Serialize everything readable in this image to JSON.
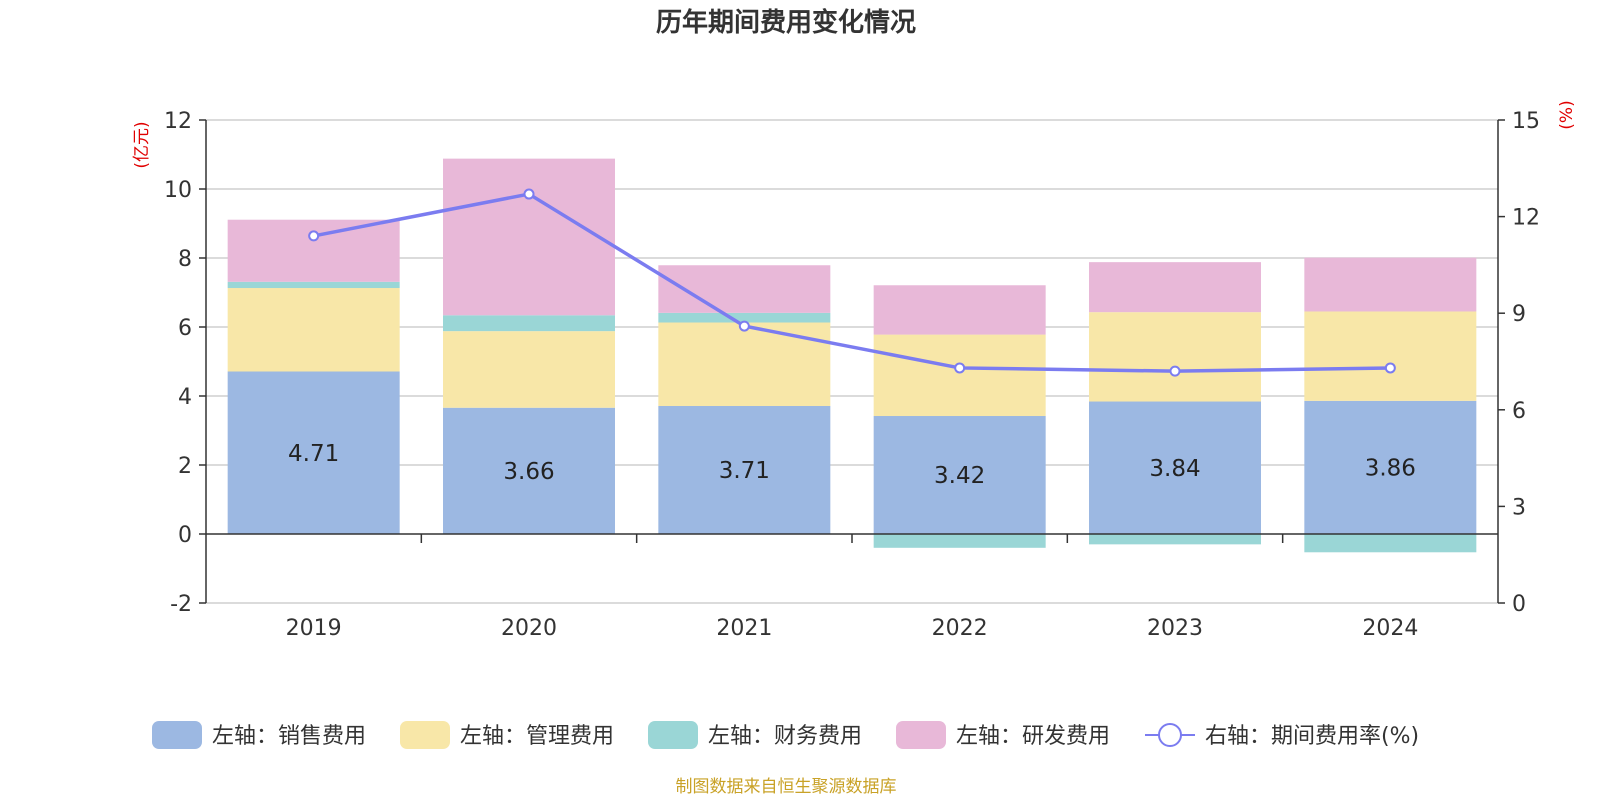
{
  "chart_data": {
    "type": "bar",
    "title": "历年期间费用变化情况",
    "categories": [
      "2019",
      "2020",
      "2021",
      "2022",
      "2023",
      "2024"
    ],
    "series": [
      {
        "name": "左轴：销售费用",
        "axis": "left",
        "color": "#9cb8e2",
        "values": [
          4.71,
          3.66,
          3.71,
          3.42,
          3.84,
          3.86
        ],
        "labels": [
          "4.71",
          "3.66",
          "3.71",
          "3.42",
          "3.84",
          "3.86"
        ]
      },
      {
        "name": "左轴：管理费用",
        "axis": "left",
        "color": "#f8e7a8",
        "values": [
          2.42,
          2.22,
          2.42,
          2.36,
          2.59,
          2.59
        ]
      },
      {
        "name": "左轴：财务费用",
        "axis": "left",
        "color": "#9ad6d6",
        "values": [
          0.18,
          0.46,
          0.28,
          -0.4,
          -0.3,
          -0.53
        ]
      },
      {
        "name": "左轴：研发费用",
        "axis": "left",
        "color": "#e8b8d8",
        "values": [
          1.8,
          4.54,
          1.38,
          1.43,
          1.45,
          1.56
        ]
      },
      {
        "name": "右轴：期间费用率(%)",
        "axis": "right",
        "type": "line",
        "color": "#7b7cf0",
        "values": [
          11.4,
          12.7,
          8.6,
          7.3,
          7.2,
          7.3
        ]
      }
    ],
    "left_axis": {
      "unit": "(亿元)",
      "ylim": [
        -2,
        12
      ],
      "ticks": [
        -2,
        0,
        2,
        4,
        6,
        8,
        10,
        12
      ]
    },
    "right_axis": {
      "unit": "(%)",
      "ylim": [
        0,
        15
      ],
      "ticks": [
        0,
        3,
        6,
        9,
        12,
        15
      ]
    },
    "grid": true,
    "legend_position": "bottom",
    "source": "制图数据来自恒生聚源数据库"
  }
}
